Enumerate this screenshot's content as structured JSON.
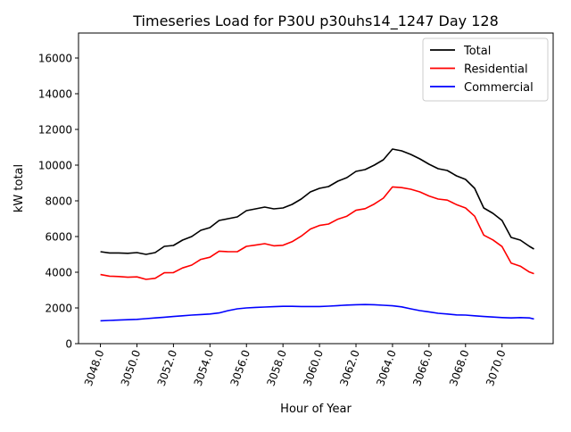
{
  "chart_data": {
    "type": "line",
    "title": "Timeseries Load for P30U p30uhs14_1247  Day 128",
    "xlabel": "Hour of Year",
    "ylabel": "kW total",
    "xlim": [
      3046.8,
      3072.8
    ],
    "ylim": [
      0,
      17400
    ],
    "xticks": [
      3048,
      3050,
      3052,
      3054,
      3056,
      3058,
      3060,
      3062,
      3064,
      3066,
      3068,
      3070
    ],
    "xtick_labels": [
      "3048.0",
      "3050.0",
      "3052.0",
      "3054.0",
      "3056.0",
      "3058.0",
      "3060.0",
      "3062.0",
      "3064.0",
      "3066.0",
      "3068.0",
      "3070.0"
    ],
    "yticks": [
      0,
      2000,
      4000,
      6000,
      8000,
      10000,
      12000,
      14000,
      16000
    ],
    "ytick_labels": [
      "0",
      "2000",
      "4000",
      "6000",
      "8000",
      "10000",
      "12000",
      "14000",
      "16000"
    ],
    "grid": false,
    "legend_position": "top-right",
    "x": [
      3048,
      3048.5,
      3049,
      3049.5,
      3050,
      3050.5,
      3051,
      3051.5,
      3052,
      3052.5,
      3053,
      3053.5,
      3054,
      3054.5,
      3055,
      3055.5,
      3056,
      3056.5,
      3057,
      3057.5,
      3058,
      3058.5,
      3059,
      3059.5,
      3060,
      3060.5,
      3061,
      3061.5,
      3062,
      3062.5,
      3063,
      3063.5,
      3064,
      3064.5,
      3065,
      3065.5,
      3066,
      3066.5,
      3067,
      3067.5,
      3068,
      3068.5,
      3069,
      3069.5,
      3070,
      3070.5,
      3071,
      3071.5,
      3071.75
    ],
    "series": [
      {
        "name": "Total",
        "color": "#000000",
        "values": [
          5150,
          5080,
          5080,
          5060,
          5100,
          5000,
          5100,
          5450,
          5500,
          5800,
          6000,
          6350,
          6500,
          6900,
          7000,
          7100,
          7450,
          7550,
          7650,
          7550,
          7600,
          7800,
          8100,
          8500,
          8700,
          8800,
          9100,
          9300,
          9650,
          9750,
          10000,
          10300,
          10900,
          10800,
          10600,
          10350,
          10050,
          9800,
          9700,
          9400,
          9200,
          8700,
          7600,
          7300,
          6900,
          5950,
          5800,
          5450,
          5300
        ]
      },
      {
        "name": "Residential",
        "color": "#ff0000",
        "values": [
          3870,
          3780,
          3760,
          3720,
          3740,
          3600,
          3660,
          3970,
          3980,
          4240,
          4400,
          4720,
          4840,
          5180,
          5150,
          5150,
          5450,
          5520,
          5600,
          5480,
          5510,
          5710,
          6020,
          6420,
          6620,
          6700,
          6970,
          7140,
          7470,
          7560,
          7820,
          8150,
          8780,
          8740,
          8650,
          8500,
          8270,
          8100,
          8040,
          7790,
          7600,
          7140,
          6080,
          5810,
          5440,
          4510,
          4340,
          4010,
          3920
        ]
      },
      {
        "name": "Commercial",
        "color": "#0000ff",
        "values": [
          1280,
          1300,
          1320,
          1340,
          1360,
          1400,
          1440,
          1480,
          1520,
          1560,
          1600,
          1630,
          1660,
          1720,
          1850,
          1950,
          2000,
          2030,
          2050,
          2070,
          2090,
          2090,
          2080,
          2080,
          2080,
          2100,
          2130,
          2160,
          2180,
          2190,
          2180,
          2150,
          2120,
          2060,
          1950,
          1850,
          1780,
          1700,
          1660,
          1610,
          1600,
          1560,
          1520,
          1490,
          1460,
          1440,
          1460,
          1440,
          1380
        ]
      }
    ]
  }
}
